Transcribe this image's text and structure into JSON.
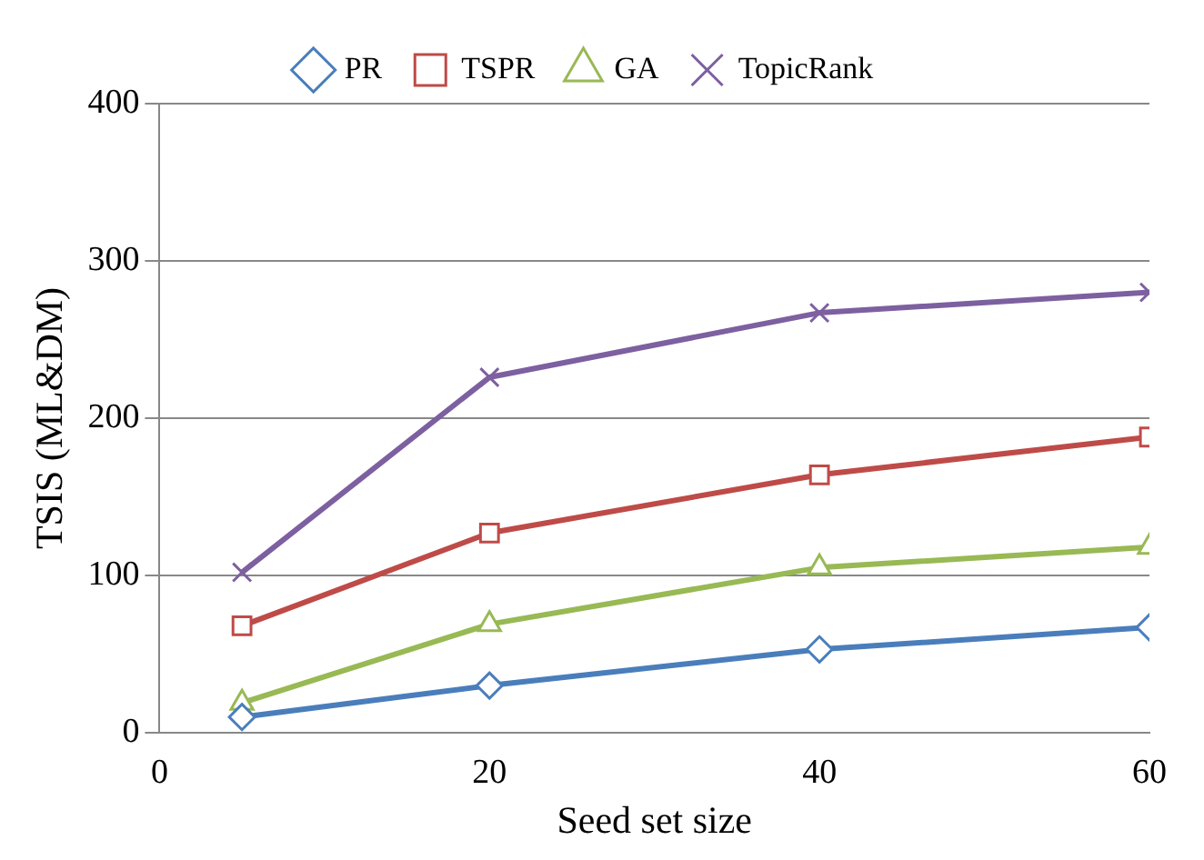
{
  "chart_data": {
    "type": "line",
    "xlabel": "Seed set size",
    "ylabel": "TSIS (ML&DM)",
    "x": [
      5,
      20,
      40,
      60
    ],
    "series": [
      {
        "name": "PR",
        "color": "#4a7ebb",
        "marker": "diamond",
        "values": [
          10,
          30,
          53,
          67
        ]
      },
      {
        "name": "TSPR",
        "color": "#be4b48",
        "marker": "square",
        "values": [
          68,
          127,
          164,
          188
        ]
      },
      {
        "name": "GA",
        "color": "#98b954",
        "marker": "triangle",
        "values": [
          19,
          69,
          105,
          118
        ]
      },
      {
        "name": "TopicRank",
        "color": "#7d60a0",
        "marker": "cross",
        "values": [
          102,
          226,
          267,
          280
        ]
      }
    ],
    "xlim": [
      0,
      60
    ],
    "xticks": [
      0,
      20,
      40,
      60
    ],
    "ylim": [
      0,
      400
    ],
    "yticks": [
      0,
      100,
      200,
      300,
      400
    ],
    "grid": "y",
    "legend": "top",
    "line_style": "solid"
  }
}
